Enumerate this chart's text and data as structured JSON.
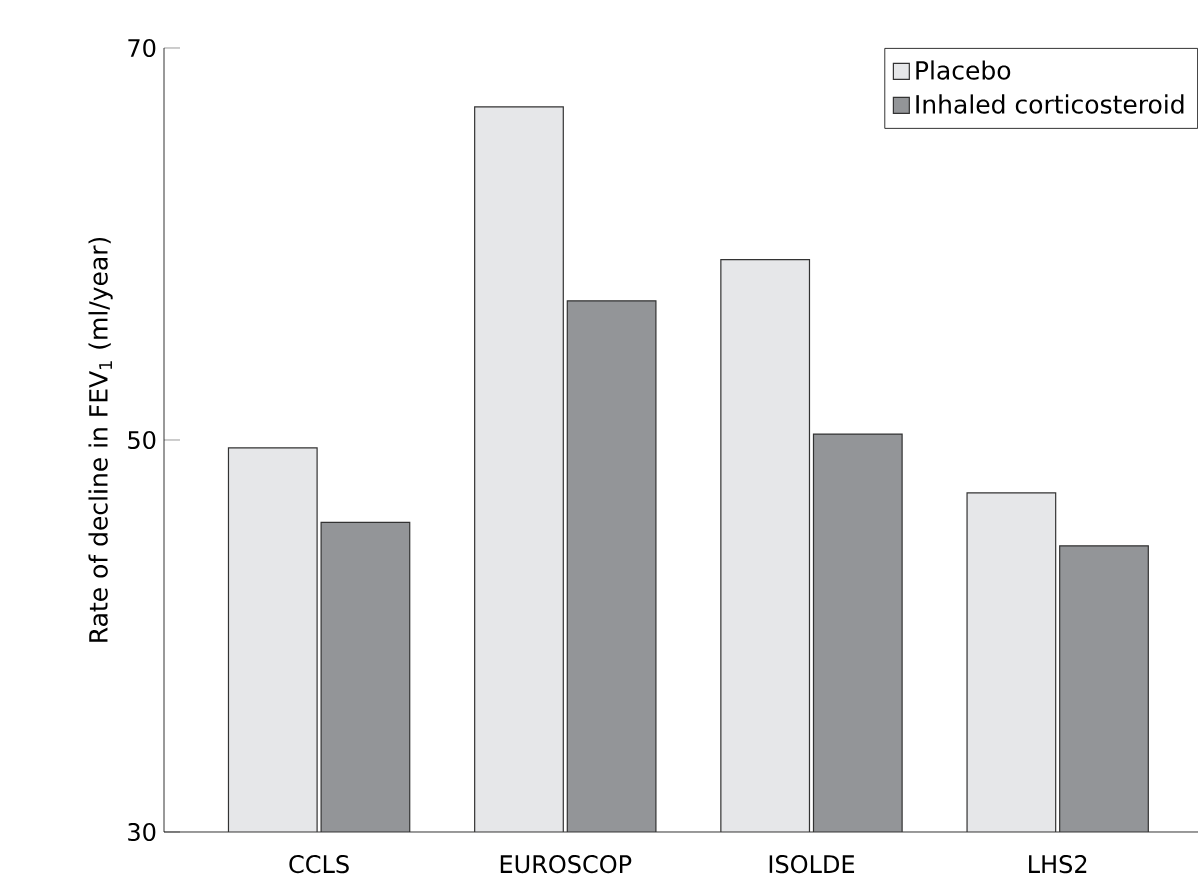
{
  "chart_data": {
    "type": "bar",
    "ylabel": "Rate of decline in FEV$_{1}$ (ml/year)",
    "categories": [
      "CCLS",
      "EUROSCOP",
      "ISOLDE",
      "LHS2"
    ],
    "series": [
      {
        "name": "Placebo",
        "color": "#e6e7e9",
        "values": [
          49.6,
          67.0,
          59.2,
          47.3
        ]
      },
      {
        "name": "Inhaled corticosteroid",
        "color": "#939598",
        "values": [
          45.8,
          57.1,
          50.3,
          44.6
        ]
      }
    ],
    "ylim": [
      30,
      70
    ],
    "yticks": [
      30,
      50,
      70
    ],
    "grid": false,
    "legend": "top right"
  }
}
